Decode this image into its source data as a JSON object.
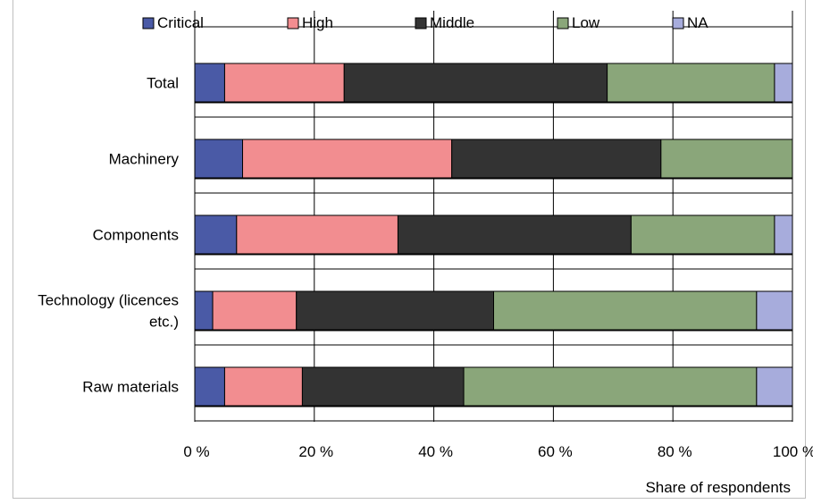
{
  "chart_data": {
    "type": "bar",
    "orientation": "horizontal",
    "stacked": true,
    "categories": [
      "Total",
      "Machinery",
      "Components",
      "Technology (licences etc.)",
      "Raw materials"
    ],
    "category_lines": [
      [
        "Total"
      ],
      [
        "Machinery"
      ],
      [
        "Components"
      ],
      [
        "Technology (licences",
        "etc.)"
      ],
      [
        "Raw materials"
      ]
    ],
    "series": [
      {
        "name": "Critical",
        "color": "#4a5aa6",
        "values": [
          5,
          8,
          7,
          3,
          5
        ]
      },
      {
        "name": "High",
        "color": "#f28d90",
        "values": [
          20,
          35,
          27,
          14,
          13
        ]
      },
      {
        "name": "Middle",
        "color": "#333333",
        "values": [
          44,
          35,
          39,
          33,
          27
        ]
      },
      {
        "name": "Low",
        "color": "#8aa67a",
        "values": [
          28,
          22,
          24,
          44,
          49
        ]
      },
      {
        "name": "NA",
        "color": "#a7acdc",
        "values": [
          3,
          0,
          3,
          6,
          6
        ]
      }
    ],
    "xlim": [
      0,
      100
    ],
    "xticks": [
      0,
      20,
      40,
      60,
      80,
      100
    ],
    "xtick_labels": [
      "0 %",
      "20 %",
      "40 %",
      "60 %",
      "80 %",
      "100 %"
    ],
    "xlabel": "Share of respondents",
    "ylabel": "",
    "title": "",
    "legend_position": "top",
    "grid": "vertical major gridlines",
    "gridline_color": "#000000"
  }
}
